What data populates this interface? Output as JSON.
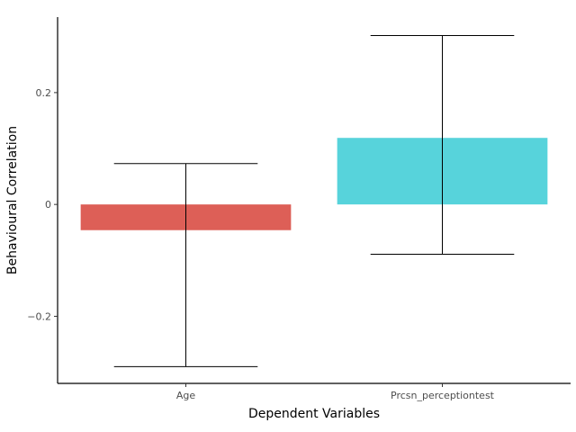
{
  "chart_data": {
    "type": "bar",
    "title": "",
    "xlabel": "Dependent Variables",
    "ylabel": "Behavioural Correlation",
    "categories": [
      "Age",
      "Prcsn_perceptiontest"
    ],
    "values": [
      -0.046,
      0.119
    ],
    "error_low": [
      -0.29,
      -0.089
    ],
    "error_high": [
      0.073,
      0.302
    ],
    "colors": [
      "#dd5f57",
      "#57d3db"
    ],
    "ylim": [
      -0.32,
      0.335
    ],
    "yticks": [
      -0.2,
      0,
      0.2
    ],
    "ytick_labels": [
      "−0.2",
      "0",
      "0.2"
    ],
    "grid": false,
    "legend": "none"
  }
}
